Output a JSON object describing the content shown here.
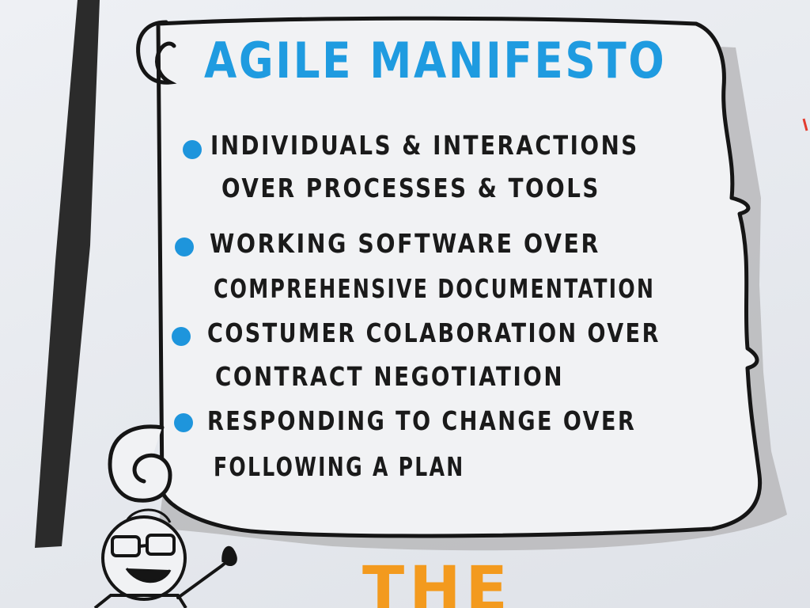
{
  "poster": {
    "title": "AGILE MANIFESTO",
    "values": [
      {
        "line1": "INDIVIDUALS & INTERACTIONS",
        "line2": "OVER PROCESSES & TOOLS"
      },
      {
        "line1": "WORKING SOFTWARE OVER",
        "line2": "COMPREHENSIVE DOCUMENTATION"
      },
      {
        "line1": "COSTUMER COLABORATION OVER",
        "line2": "CONTRACT NEGOTIATION"
      },
      {
        "line1": "RESPONDING TO CHANGE OVER",
        "line2": "FOLLOWING A PLAN"
      }
    ],
    "footer_word": "THE"
  },
  "colors": {
    "title": "#1f9be0",
    "bullet": "#1e95dc",
    "ink": "#1a1a1a",
    "footer": "#f39a1e",
    "shadow": "#b8b9bb"
  }
}
